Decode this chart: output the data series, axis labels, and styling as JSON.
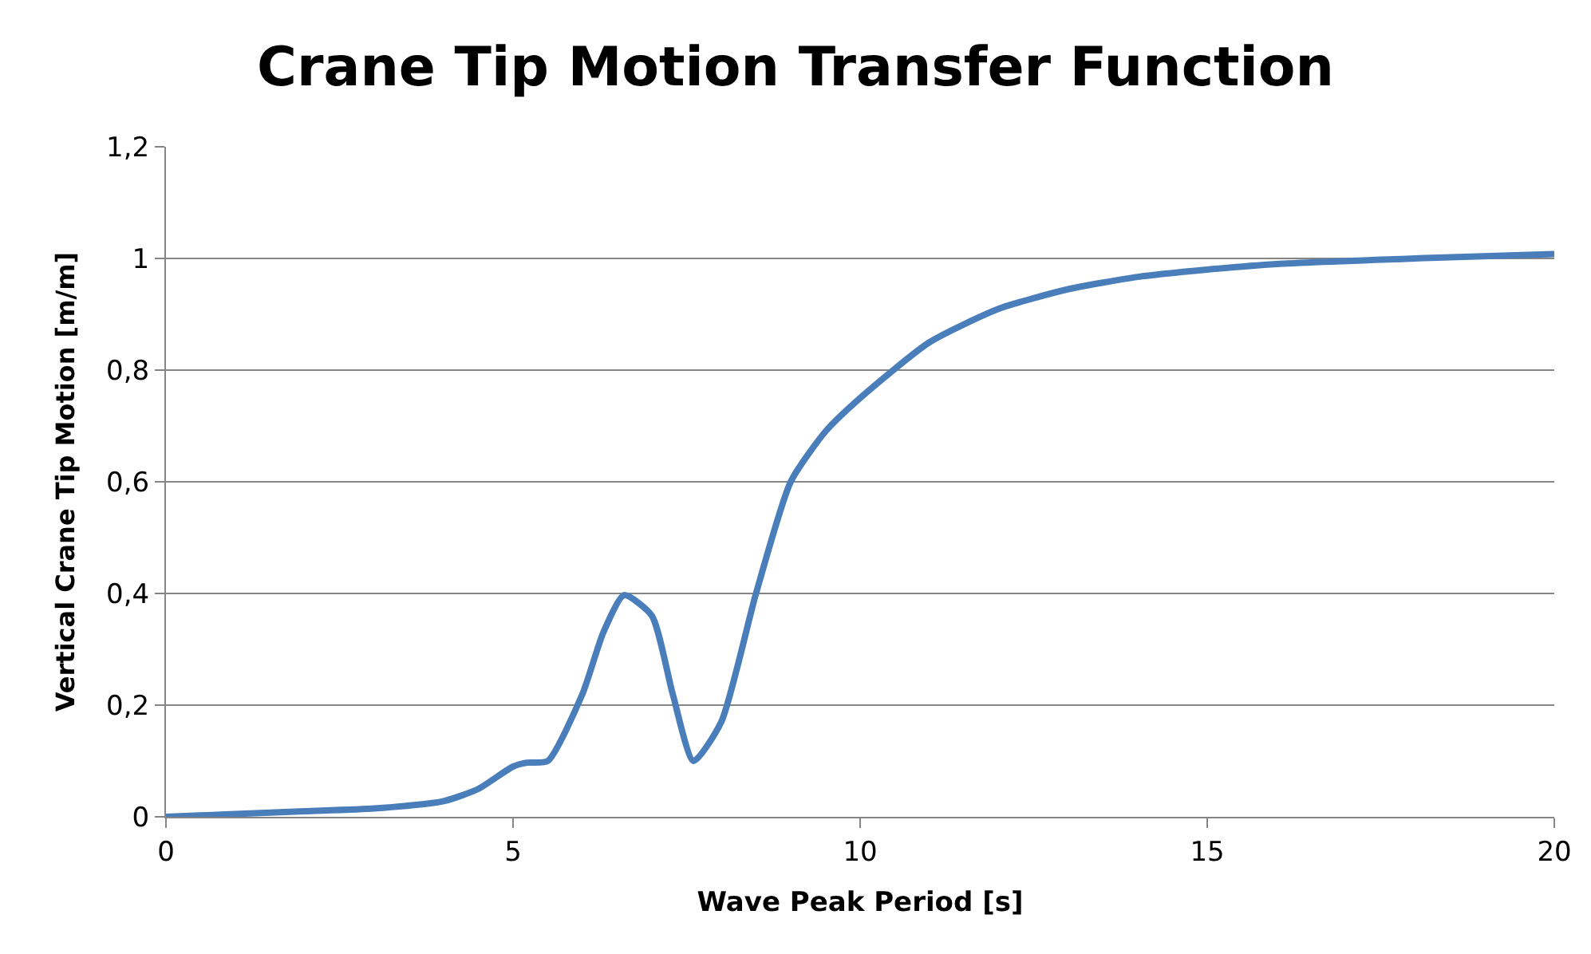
{
  "chart_data": {
    "type": "line",
    "title": "Crane Tip Motion Transfer Function",
    "xlabel": "Wave Peak Period [s]",
    "ylabel": "Vertical Crane Tip Motion [m/m]",
    "x": [
      0,
      1,
      2,
      3,
      4,
      4.5,
      5,
      5.2,
      5.5,
      6,
      6.3,
      6.6,
      7,
      7.3,
      7.6,
      8,
      8.5,
      9,
      9.5,
      10,
      11,
      12,
      13,
      14,
      15,
      16,
      18,
      20
    ],
    "series": [
      {
        "color": "#4a7ebb",
        "values": [
          0,
          0.005,
          0.01,
          0.015,
          0.028,
          0.05,
          0.09,
          0.097,
          0.1,
          0.22,
          0.33,
          0.397,
          0.36,
          0.22,
          0.1,
          0.17,
          0.4,
          0.6,
          0.69,
          0.75,
          0.85,
          0.91,
          0.945,
          0.967,
          0.98,
          0.99,
          1.0,
          1.008
        ]
      }
    ],
    "xlim": [
      0,
      20
    ],
    "xticks": [
      0,
      5,
      10,
      15,
      20
    ],
    "ylim": [
      0,
      1.2
    ],
    "yticks": [
      {
        "value": 0,
        "label": "0"
      },
      {
        "value": 0.2,
        "label": "0,2"
      },
      {
        "value": 0.4,
        "label": "0,4"
      },
      {
        "value": 0.6,
        "label": "0,6"
      },
      {
        "value": 0.8,
        "label": "0,8"
      },
      {
        "value": 1,
        "label": "1"
      },
      {
        "value": 1.2,
        "label": "1,2"
      }
    ],
    "grid": "y",
    "legend": false,
    "marker": "none",
    "line_style": "solid"
  }
}
